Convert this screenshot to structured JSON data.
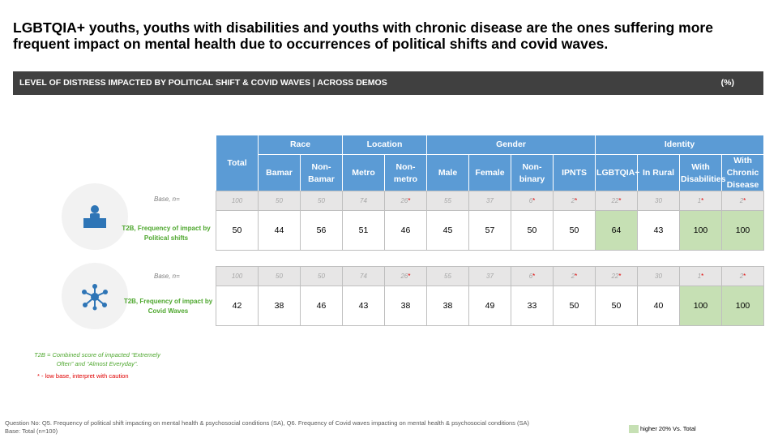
{
  "title": "LGBTQIA+ youths, youths with disabilities and youths with chronic disease are the ones suffering more frequent impact on mental health due to occurrences of political shifts and covid waves.",
  "banner": {
    "label": "LEVEL OF DISTRESS IMPACTED BY POLITICAL SHIFT & COVID WAVES | ACROSS DEMOS",
    "unit": "(%)"
  },
  "header": {
    "total": "Total",
    "groups": [
      "Race",
      "Location",
      "Gender",
      "Identity"
    ],
    "columns": [
      "Bamar",
      "Non-Bamar",
      "Metro",
      "Non-metro",
      "Male",
      "Female",
      "Non-binary",
      "IPNTS",
      "LGBTQIA+",
      "In Rural",
      "With Disabilities",
      "With Chronic Disease"
    ]
  },
  "rows": [
    {
      "base_label": "Base, n=",
      "metric_label": "T2B, Frequency of impact by Political shifts",
      "icon": "person-at-podium-icon",
      "base": [
        "100",
        "50",
        "50",
        "74",
        "26",
        "55",
        "37",
        "6",
        "2",
        "22",
        "30",
        "1",
        "2"
      ],
      "values": [
        "50",
        "44",
        "56",
        "51",
        "46",
        "45",
        "57",
        "50",
        "50",
        "64",
        "43",
        "100",
        "100"
      ]
    },
    {
      "base_label": "Base, n=",
      "metric_label": "T2B, Frequency of impact by Covid Waves",
      "icon": "virus-network-icon",
      "base": [
        "100",
        "50",
        "50",
        "74",
        "26",
        "55",
        "37",
        "6",
        "2",
        "22",
        "30",
        "1",
        "2"
      ],
      "values": [
        "42",
        "38",
        "46",
        "43",
        "38",
        "38",
        "49",
        "33",
        "50",
        "50",
        "40",
        "100",
        "100"
      ]
    }
  ],
  "low_base_marker": "*",
  "footnotes": {
    "definition": "T2B = Combined score of  impacted “Extremely Often” and “Almost Everyday”.",
    "low_base": "* - low base, interpret with caution",
    "question": "Question No: Q5. Frequency of political shift impacting on mental health & psychosocial conditions (SA), Q6. Frequency of Covid waves impacting on mental health & psychosocial conditions (SA)",
    "base": "Base: Total (n=100)"
  },
  "legend": {
    "label": "higher 20% Vs. Total",
    "color": "#c6e0b4"
  },
  "colors": {
    "header": "#5b9bd5",
    "highlight": "#c6e0b4",
    "banner": "#404040",
    "metric_label": "#4ea72e",
    "low_base": "#e00000"
  }
}
